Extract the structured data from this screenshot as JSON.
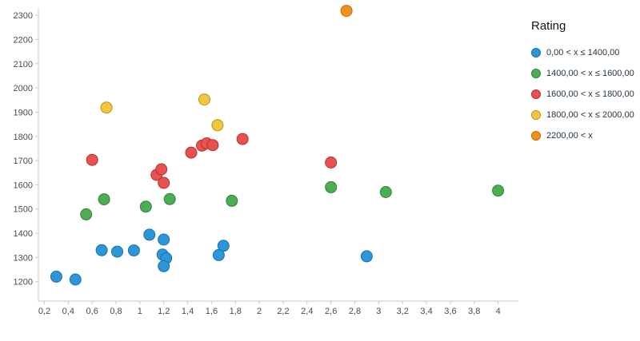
{
  "chart_data": {
    "type": "scatter",
    "title": "",
    "xlabel": "",
    "ylabel": "",
    "grid": false,
    "legend": {
      "title": "Rating",
      "position": "right"
    },
    "x_axis": {
      "min": 0.15,
      "max": 4.17,
      "ticks": [
        0.2,
        0.4,
        0.6,
        0.8,
        1,
        1.2,
        1.4,
        1.6,
        1.8,
        2,
        2.2,
        2.4,
        2.6,
        2.8,
        3,
        3.2,
        3.4,
        3.6,
        3.8,
        4
      ],
      "tick_labels": [
        "0,2",
        "0,4",
        "0,6",
        "0,8",
        "1",
        "1,2",
        "1,4",
        "1,6",
        "1,8",
        "2",
        "2,2",
        "2,4",
        "2,6",
        "2,8",
        "3",
        "3,2",
        "3,4",
        "3,6",
        "3,8",
        "4"
      ]
    },
    "y_axis": {
      "min": 1120,
      "max": 2330,
      "ticks": [
        1200,
        1300,
        1400,
        1500,
        1600,
        1700,
        1800,
        1900,
        2000,
        2100,
        2200,
        2300
      ],
      "tick_labels": [
        "1200",
        "1300",
        "1400",
        "1500",
        "1600",
        "1700",
        "1800",
        "1900",
        "2000",
        "2100",
        "2200",
        "2300"
      ]
    },
    "series": [
      {
        "name": "0,00 < x ≤ 1400,00",
        "color": "#2d96d9",
        "border": "#1a72ab",
        "points": [
          [
            0.3,
            1221
          ],
          [
            0.46,
            1209
          ],
          [
            0.68,
            1330
          ],
          [
            0.81,
            1324
          ],
          [
            0.95,
            1329
          ],
          [
            1.08,
            1394
          ],
          [
            1.2,
            1374
          ],
          [
            1.19,
            1312
          ],
          [
            1.22,
            1297
          ],
          [
            1.2,
            1264
          ],
          [
            1.7,
            1348
          ],
          [
            1.66,
            1310
          ],
          [
            2.9,
            1305
          ]
        ]
      },
      {
        "name": "1400,00 < x ≤ 1600,00",
        "color": "#4cad52",
        "border": "#35813b",
        "points": [
          [
            0.55,
            1478
          ],
          [
            0.7,
            1540
          ],
          [
            1.05,
            1510
          ],
          [
            1.25,
            1541
          ],
          [
            1.77,
            1534
          ],
          [
            2.6,
            1590
          ],
          [
            3.06,
            1570
          ],
          [
            4.0,
            1576
          ]
        ]
      },
      {
        "name": "1600,00 < x ≤ 1800,00",
        "color": "#e8514f",
        "border": "#b23432",
        "points": [
          [
            0.6,
            1703
          ],
          [
            1.14,
            1641
          ],
          [
            1.18,
            1664
          ],
          [
            1.2,
            1608
          ],
          [
            1.43,
            1733
          ],
          [
            1.52,
            1762
          ],
          [
            1.56,
            1771
          ],
          [
            1.61,
            1764
          ],
          [
            1.86,
            1789
          ],
          [
            2.6,
            1692
          ]
        ]
      },
      {
        "name": "1800,00 < x ≤ 2000,00",
        "color": "#f3c73d",
        "border": "#bb9022",
        "points": [
          [
            0.72,
            1919
          ],
          [
            1.54,
            1952
          ],
          [
            1.65,
            1846
          ]
        ]
      },
      {
        "name": "2200,00 < x",
        "color": "#f2921d",
        "border": "#ba6e10",
        "points": [
          [
            2.73,
            2318
          ]
        ]
      }
    ]
  }
}
